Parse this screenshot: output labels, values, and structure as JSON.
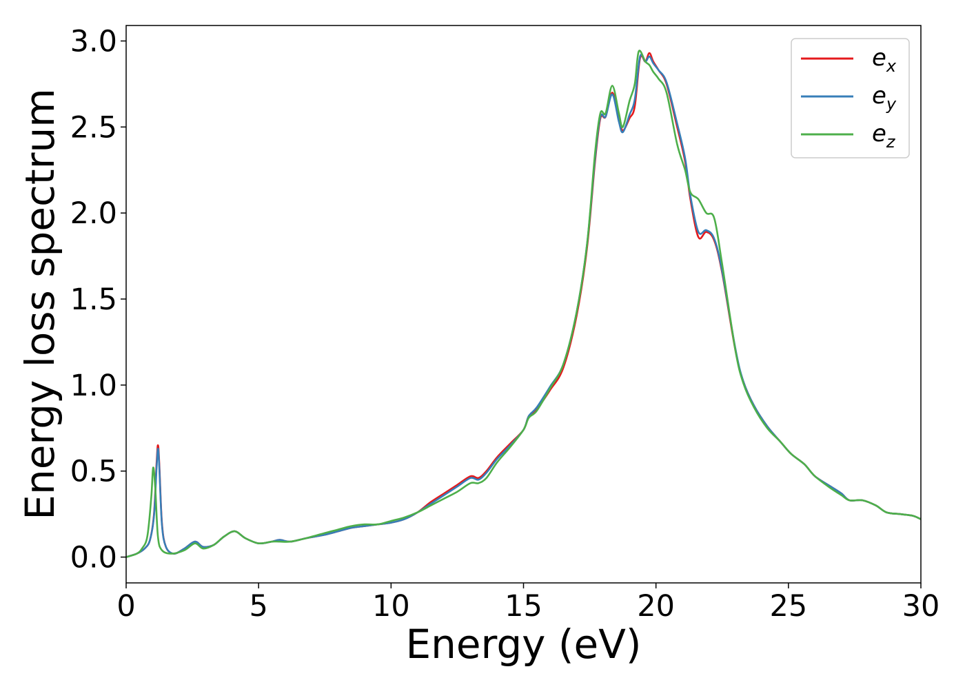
{
  "chart_data": {
    "type": "line",
    "xlabel": "Energy (eV)",
    "ylabel": "Energy loss spectrum",
    "xlim": [
      0,
      30
    ],
    "ylim": [
      -0.15,
      3.09
    ],
    "xticks": [
      "0",
      "5",
      "10",
      "15",
      "20",
      "25",
      "30"
    ],
    "yticks": [
      "0.0",
      "0.5",
      "1.0",
      "1.5",
      "2.0",
      "2.5",
      "3.0"
    ],
    "grid": false,
    "legend_position": "top-right",
    "series": [
      {
        "name": "e_x",
        "legend_base": "e",
        "legend_sub": "x",
        "color": "#e41a1c",
        "points": [
          [
            0,
            0.0
          ],
          [
            0.4,
            0.02
          ],
          [
            0.7,
            0.05
          ],
          [
            0.9,
            0.1
          ],
          [
            1.05,
            0.25
          ],
          [
            1.15,
            0.55
          ],
          [
            1.2,
            0.65
          ],
          [
            1.25,
            0.55
          ],
          [
            1.35,
            0.2
          ],
          [
            1.5,
            0.06
          ],
          [
            1.8,
            0.02
          ],
          [
            2.2,
            0.05
          ],
          [
            2.6,
            0.09
          ],
          [
            2.9,
            0.06
          ],
          [
            3.3,
            0.07
          ],
          [
            3.7,
            0.12
          ],
          [
            4.1,
            0.15
          ],
          [
            4.5,
            0.11
          ],
          [
            5.0,
            0.08
          ],
          [
            5.5,
            0.09
          ],
          [
            5.8,
            0.1
          ],
          [
            6.2,
            0.09
          ],
          [
            6.8,
            0.11
          ],
          [
            7.5,
            0.13
          ],
          [
            8.0,
            0.15
          ],
          [
            8.5,
            0.17
          ],
          [
            9.0,
            0.18
          ],
          [
            9.5,
            0.19
          ],
          [
            10.0,
            0.2
          ],
          [
            10.5,
            0.22
          ],
          [
            11.0,
            0.26
          ],
          [
            11.5,
            0.32
          ],
          [
            12.0,
            0.37
          ],
          [
            12.5,
            0.42
          ],
          [
            13.0,
            0.47
          ],
          [
            13.3,
            0.46
          ],
          [
            13.6,
            0.5
          ],
          [
            14.0,
            0.58
          ],
          [
            14.5,
            0.66
          ],
          [
            15.0,
            0.74
          ],
          [
            15.2,
            0.82
          ],
          [
            15.5,
            0.86
          ],
          [
            16.0,
            0.97
          ],
          [
            16.5,
            1.1
          ],
          [
            17.0,
            1.4
          ],
          [
            17.4,
            1.8
          ],
          [
            17.7,
            2.3
          ],
          [
            17.9,
            2.55
          ],
          [
            18.1,
            2.56
          ],
          [
            18.35,
            2.7
          ],
          [
            18.6,
            2.55
          ],
          [
            18.75,
            2.48
          ],
          [
            19.0,
            2.55
          ],
          [
            19.2,
            2.62
          ],
          [
            19.4,
            2.9
          ],
          [
            19.6,
            2.88
          ],
          [
            19.75,
            2.93
          ],
          [
            19.9,
            2.88
          ],
          [
            20.1,
            2.83
          ],
          [
            20.4,
            2.75
          ],
          [
            20.8,
            2.5
          ],
          [
            21.1,
            2.3
          ],
          [
            21.3,
            2.08
          ],
          [
            21.6,
            1.86
          ],
          [
            21.9,
            1.89
          ],
          [
            22.2,
            1.84
          ],
          [
            22.5,
            1.65
          ],
          [
            23.0,
            1.2
          ],
          [
            23.3,
            1.02
          ],
          [
            23.7,
            0.88
          ],
          [
            24.2,
            0.76
          ],
          [
            24.7,
            0.67
          ],
          [
            25.1,
            0.6
          ],
          [
            25.6,
            0.54
          ],
          [
            26.0,
            0.47
          ],
          [
            26.6,
            0.41
          ],
          [
            27.0,
            0.37
          ],
          [
            27.3,
            0.33
          ],
          [
            27.8,
            0.33
          ],
          [
            28.3,
            0.3
          ],
          [
            28.7,
            0.26
          ],
          [
            29.2,
            0.25
          ],
          [
            29.7,
            0.24
          ],
          [
            30.0,
            0.22
          ]
        ]
      },
      {
        "name": "e_y",
        "legend_base": "e",
        "legend_sub": "y",
        "color": "#377eb8",
        "points": [
          [
            0,
            0.0
          ],
          [
            0.4,
            0.02
          ],
          [
            0.7,
            0.05
          ],
          [
            0.9,
            0.1
          ],
          [
            1.05,
            0.24
          ],
          [
            1.15,
            0.52
          ],
          [
            1.2,
            0.63
          ],
          [
            1.25,
            0.53
          ],
          [
            1.35,
            0.19
          ],
          [
            1.5,
            0.06
          ],
          [
            1.8,
            0.02
          ],
          [
            2.2,
            0.05
          ],
          [
            2.6,
            0.09
          ],
          [
            2.9,
            0.06
          ],
          [
            3.3,
            0.07
          ],
          [
            3.7,
            0.12
          ],
          [
            4.1,
            0.15
          ],
          [
            4.5,
            0.11
          ],
          [
            5.0,
            0.08
          ],
          [
            5.5,
            0.09
          ],
          [
            5.8,
            0.1
          ],
          [
            6.2,
            0.09
          ],
          [
            6.8,
            0.11
          ],
          [
            7.5,
            0.13
          ],
          [
            8.0,
            0.15
          ],
          [
            8.5,
            0.17
          ],
          [
            9.0,
            0.18
          ],
          [
            9.5,
            0.19
          ],
          [
            10.0,
            0.2
          ],
          [
            10.5,
            0.22
          ],
          [
            11.0,
            0.26
          ],
          [
            11.5,
            0.31
          ],
          [
            12.0,
            0.36
          ],
          [
            12.5,
            0.41
          ],
          [
            13.0,
            0.46
          ],
          [
            13.3,
            0.45
          ],
          [
            13.6,
            0.49
          ],
          [
            14.0,
            0.57
          ],
          [
            14.5,
            0.65
          ],
          [
            15.0,
            0.74
          ],
          [
            15.2,
            0.82
          ],
          [
            15.5,
            0.87
          ],
          [
            16.0,
            0.99
          ],
          [
            16.5,
            1.12
          ],
          [
            17.0,
            1.42
          ],
          [
            17.4,
            1.82
          ],
          [
            17.7,
            2.32
          ],
          [
            17.9,
            2.56
          ],
          [
            18.1,
            2.56
          ],
          [
            18.35,
            2.69
          ],
          [
            18.6,
            2.53
          ],
          [
            18.75,
            2.47
          ],
          [
            19.0,
            2.57
          ],
          [
            19.2,
            2.66
          ],
          [
            19.4,
            2.91
          ],
          [
            19.6,
            2.88
          ],
          [
            19.75,
            2.91
          ],
          [
            19.9,
            2.87
          ],
          [
            20.1,
            2.83
          ],
          [
            20.4,
            2.76
          ],
          [
            20.8,
            2.52
          ],
          [
            21.1,
            2.32
          ],
          [
            21.3,
            2.1
          ],
          [
            21.6,
            1.89
          ],
          [
            21.9,
            1.9
          ],
          [
            22.2,
            1.85
          ],
          [
            22.5,
            1.66
          ],
          [
            23.0,
            1.21
          ],
          [
            23.3,
            1.02
          ],
          [
            23.7,
            0.88
          ],
          [
            24.2,
            0.76
          ],
          [
            24.7,
            0.67
          ],
          [
            25.1,
            0.6
          ],
          [
            25.6,
            0.54
          ],
          [
            26.0,
            0.47
          ],
          [
            26.6,
            0.41
          ],
          [
            27.0,
            0.37
          ],
          [
            27.3,
            0.33
          ],
          [
            27.8,
            0.33
          ],
          [
            28.3,
            0.3
          ],
          [
            28.7,
            0.26
          ],
          [
            29.2,
            0.25
          ],
          [
            29.7,
            0.24
          ],
          [
            30.0,
            0.22
          ]
        ]
      },
      {
        "name": "e_z",
        "legend_base": "e",
        "legend_sub": "z",
        "color": "#4daf4a",
        "points": [
          [
            0,
            0.0
          ],
          [
            0.4,
            0.02
          ],
          [
            0.6,
            0.05
          ],
          [
            0.8,
            0.12
          ],
          [
            0.95,
            0.35
          ],
          [
            1.02,
            0.52
          ],
          [
            1.1,
            0.4
          ],
          [
            1.2,
            0.12
          ],
          [
            1.35,
            0.04
          ],
          [
            1.7,
            0.02
          ],
          [
            2.2,
            0.04
          ],
          [
            2.6,
            0.08
          ],
          [
            2.9,
            0.05
          ],
          [
            3.3,
            0.07
          ],
          [
            3.7,
            0.12
          ],
          [
            4.1,
            0.15
          ],
          [
            4.5,
            0.11
          ],
          [
            5.0,
            0.08
          ],
          [
            5.5,
            0.09
          ],
          [
            5.8,
            0.09
          ],
          [
            6.2,
            0.09
          ],
          [
            6.8,
            0.11
          ],
          [
            7.5,
            0.14
          ],
          [
            8.0,
            0.16
          ],
          [
            8.5,
            0.18
          ],
          [
            9.0,
            0.19
          ],
          [
            9.5,
            0.19
          ],
          [
            10.0,
            0.21
          ],
          [
            10.5,
            0.23
          ],
          [
            11.0,
            0.26
          ],
          [
            11.5,
            0.3
          ],
          [
            12.0,
            0.34
          ],
          [
            12.5,
            0.38
          ],
          [
            13.0,
            0.43
          ],
          [
            13.3,
            0.43
          ],
          [
            13.6,
            0.46
          ],
          [
            14.0,
            0.55
          ],
          [
            14.5,
            0.64
          ],
          [
            15.0,
            0.74
          ],
          [
            15.2,
            0.81
          ],
          [
            15.5,
            0.85
          ],
          [
            16.0,
            0.98
          ],
          [
            16.5,
            1.12
          ],
          [
            17.0,
            1.42
          ],
          [
            17.4,
            1.82
          ],
          [
            17.7,
            2.35
          ],
          [
            17.9,
            2.58
          ],
          [
            18.1,
            2.58
          ],
          [
            18.35,
            2.74
          ],
          [
            18.6,
            2.58
          ],
          [
            18.75,
            2.5
          ],
          [
            19.0,
            2.65
          ],
          [
            19.2,
            2.75
          ],
          [
            19.35,
            2.94
          ],
          [
            19.6,
            2.88
          ],
          [
            19.75,
            2.86
          ],
          [
            19.9,
            2.82
          ],
          [
            20.1,
            2.78
          ],
          [
            20.4,
            2.7
          ],
          [
            20.8,
            2.4
          ],
          [
            21.1,
            2.25
          ],
          [
            21.3,
            2.12
          ],
          [
            21.6,
            2.08
          ],
          [
            21.9,
            2.0
          ],
          [
            22.2,
            1.97
          ],
          [
            22.5,
            1.7
          ],
          [
            23.0,
            1.2
          ],
          [
            23.3,
            1.01
          ],
          [
            23.7,
            0.87
          ],
          [
            24.2,
            0.75
          ],
          [
            24.7,
            0.67
          ],
          [
            25.1,
            0.6
          ],
          [
            25.6,
            0.54
          ],
          [
            26.0,
            0.47
          ],
          [
            26.6,
            0.4
          ],
          [
            27.0,
            0.36
          ],
          [
            27.3,
            0.33
          ],
          [
            27.8,
            0.33
          ],
          [
            28.3,
            0.3
          ],
          [
            28.7,
            0.26
          ],
          [
            29.2,
            0.25
          ],
          [
            29.7,
            0.24
          ],
          [
            30.0,
            0.22
          ]
        ]
      }
    ]
  }
}
